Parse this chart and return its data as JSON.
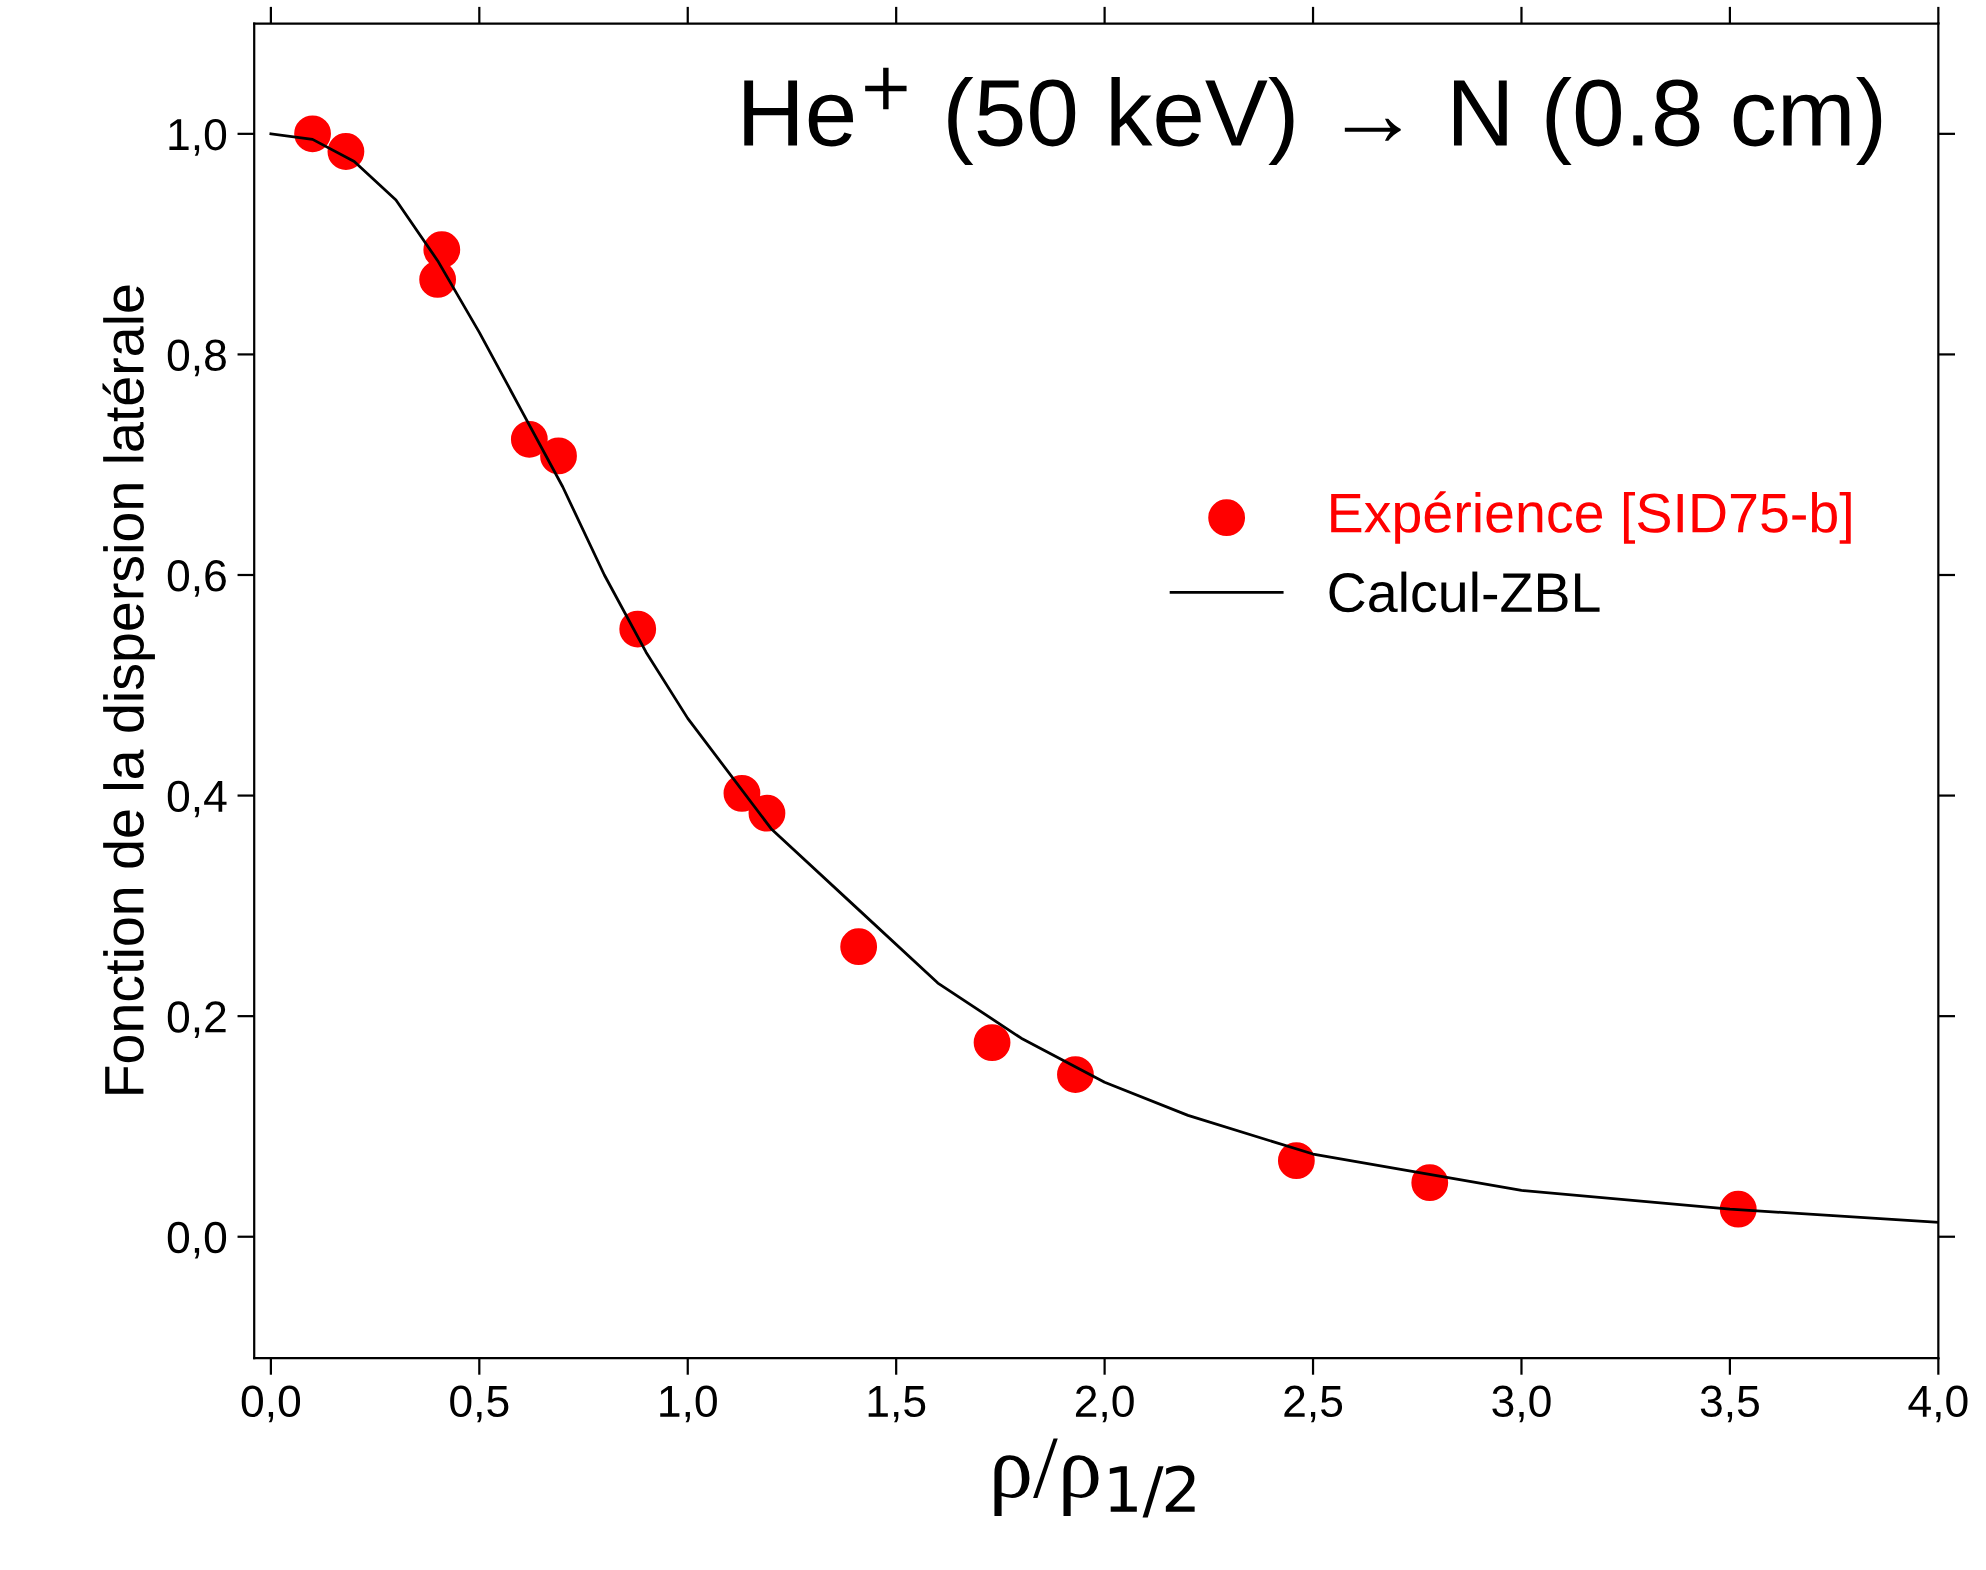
{
  "chart_data": {
    "type": "scatter",
    "xlabel": "ρ/ρ$_{1/2}$",
    "ylabel": "Fonction de la dispersion latérale",
    "annotations": [
      "He$^{+}$ (50 keV) → N (0.8 cm)"
    ],
    "xlim": [
      -0.04,
      4.0
    ],
    "ylim": [
      -0.11,
      1.1
    ],
    "xticks": [
      {
        "value": 0,
        "label": "0,0"
      },
      {
        "value": 0.5,
        "label": "0,5"
      },
      {
        "value": 1,
        "label": "1,0"
      },
      {
        "value": 1.5,
        "label": "1,5"
      },
      {
        "value": 2,
        "label": "2,0"
      },
      {
        "value": 2.5,
        "label": "2,5"
      },
      {
        "value": 3,
        "label": "3,0"
      },
      {
        "value": 3.5,
        "label": "3,5"
      },
      {
        "value": 4,
        "label": "4,0"
      }
    ],
    "yticks": [
      {
        "value": 0,
        "label": "0,0"
      },
      {
        "value": 0.2,
        "label": "0,2"
      },
      {
        "value": 0.4,
        "label": "0,4"
      },
      {
        "value": 0.6,
        "label": "0,6"
      },
      {
        "value": 0.8,
        "label": "0,8"
      },
      {
        "value": 1,
        "label": "1,0"
      }
    ],
    "grid": false,
    "legend": "right",
    "series": [
      {
        "name": "Expérience [SID75-b]",
        "marker": "circle",
        "color": "#ff0000",
        "x": [
          0.1,
          0.18,
          0.4,
          0.41,
          0.62,
          0.69,
          0.88,
          1.13,
          1.19,
          1.41,
          1.73,
          1.93,
          2.46,
          2.78,
          3.52
        ],
        "values": [
          1.0,
          0.984,
          0.868,
          0.895,
          0.723,
          0.708,
          0.551,
          0.402,
          0.384,
          0.263,
          0.176,
          0.147,
          0.069,
          0.049,
          0.025
        ]
      },
      {
        "name": "Calcul-ZBL",
        "type": "line",
        "color": "#000000",
        "line_style": "solid",
        "x": [
          0,
          0.1,
          0.2,
          0.3,
          0.4,
          0.5,
          0.6,
          0.7,
          0.8,
          0.9,
          1.0,
          1.2,
          1.4,
          1.6,
          1.8,
          2.0,
          2.2,
          2.5,
          3.0,
          3.5,
          4.0
        ],
        "values": [
          1.0,
          0.995,
          0.975,
          0.94,
          0.885,
          0.82,
          0.75,
          0.68,
          0.6,
          0.53,
          0.47,
          0.37,
          0.3,
          0.23,
          0.18,
          0.14,
          0.11,
          0.075,
          0.042,
          0.025,
          0.013
        ]
      }
    ]
  }
}
